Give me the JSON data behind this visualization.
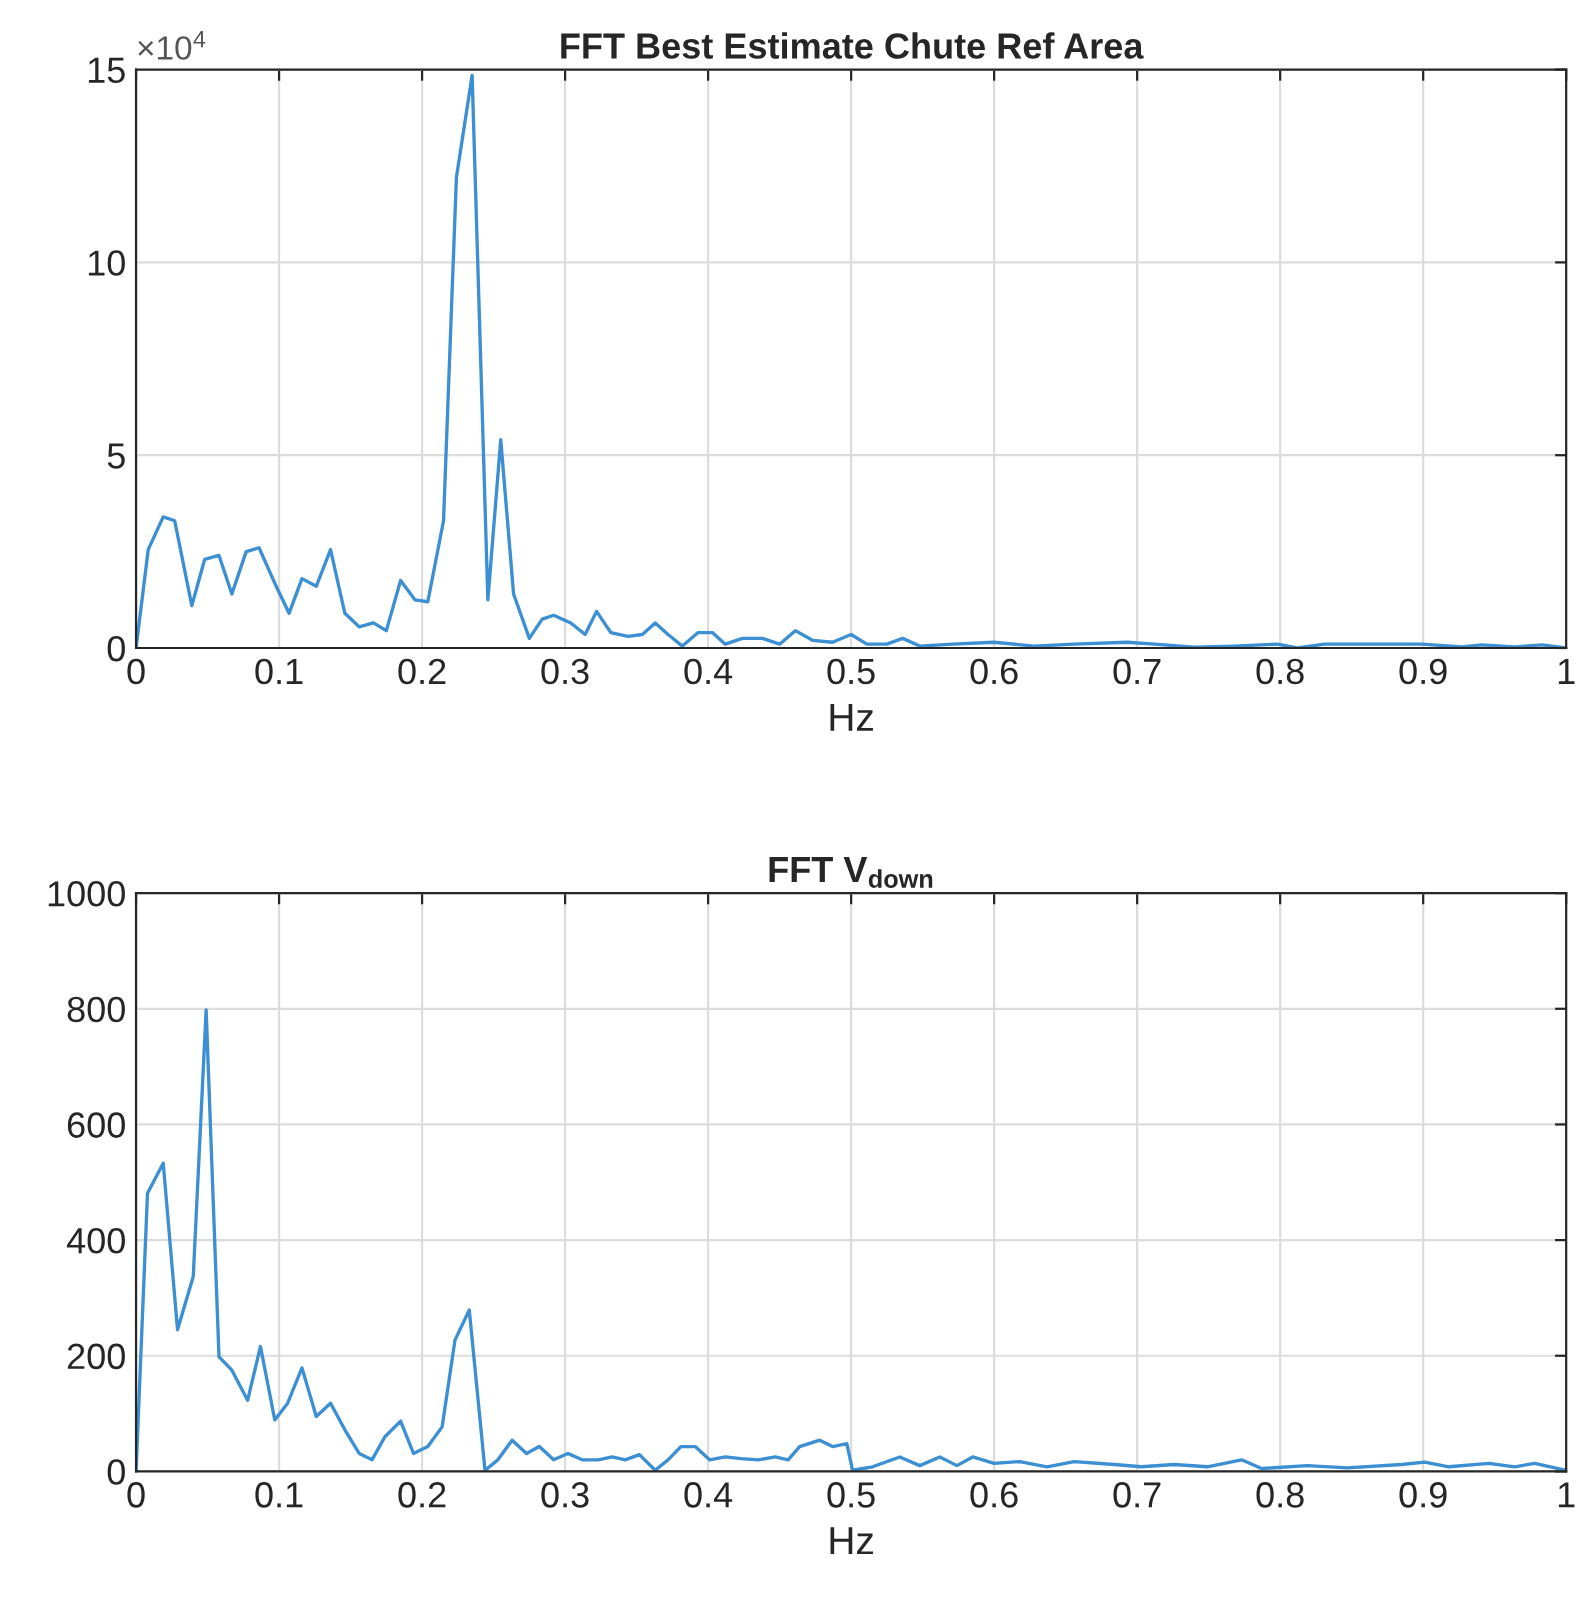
{
  "chart_data": [
    {
      "type": "line",
      "title": "FFT Best Estimate Chute Ref Area",
      "xlabel": "Hz",
      "annotations": [
        "×10$^{4}$"
      ],
      "xlim": [
        0,
        1
      ],
      "xticks": [
        0,
        0.1,
        0.2,
        0.3,
        0.4,
        0.5,
        0.6,
        0.7,
        0.8,
        0.9,
        1
      ],
      "ylim": [
        0,
        15
      ],
      "yticks": [
        0,
        5,
        10,
        15
      ],
      "grid": true,
      "series": [
        {
          "color": "#3c8fd2",
          "x": [
            0,
            0.0085,
            0.019,
            0.027,
            0.039,
            0.048,
            0.058,
            0.067,
            0.077,
            0.086,
            0.098,
            0.107,
            0.116,
            0.126,
            0.136,
            0.146,
            0.156,
            0.166,
            0.175,
            0.185,
            0.195,
            0.204,
            0.215,
            0.224,
            0.235,
            0.246,
            0.255,
            0.264,
            0.275,
            0.284,
            0.292,
            0.304,
            0.314,
            0.322,
            0.332,
            0.344,
            0.354,
            0.363,
            0.372,
            0.382,
            0.393,
            0.403,
            0.412,
            0.424,
            0.438,
            0.45,
            0.461,
            0.473,
            0.487,
            0.5,
            0.511,
            0.525,
            0.536,
            0.548,
            0.571,
            0.6,
            0.628,
            0.656,
            0.693,
            0.712,
            0.74,
            0.768,
            0.798,
            0.812,
            0.831,
            0.857,
            0.899,
            0.927,
            0.941,
            0.964,
            0.983,
            1.0
          ],
          "values": [
            0,
            2.55,
            3.4,
            3.3,
            1.1,
            2.3,
            2.4,
            1.4,
            2.5,
            2.6,
            1.6,
            0.9,
            1.8,
            1.6,
            2.55,
            0.9,
            0.55,
            0.65,
            0.45,
            1.75,
            1.25,
            1.2,
            3.3,
            12.2,
            14.85,
            1.25,
            5.4,
            1.4,
            0.25,
            0.75,
            0.85,
            0.65,
            0.35,
            0.95,
            0.4,
            0.3,
            0.35,
            0.65,
            0.35,
            0.05,
            0.4,
            0.4,
            0.1,
            0.25,
            0.25,
            0.1,
            0.45,
            0.2,
            0.15,
            0.35,
            0.1,
            0.1,
            0.25,
            0.05,
            0.1,
            0.15,
            0.05,
            0.1,
            0.15,
            0.1,
            0.02,
            0.05,
            0.1,
            0,
            0.1,
            0.1,
            0.1,
            0.03,
            0.08,
            0.03,
            0.08,
            0
          ]
        }
      ]
    },
    {
      "type": "line",
      "title": "FFT V$_{down}$",
      "xlabel": "Hz",
      "xlim": [
        0,
        1
      ],
      "xticks": [
        0,
        0.1,
        0.2,
        0.3,
        0.4,
        0.5,
        0.6,
        0.7,
        0.8,
        0.9,
        1
      ],
      "ylim": [
        0,
        1000
      ],
      "yticks": [
        0,
        200,
        400,
        600,
        800,
        1000
      ],
      "grid": true,
      "series": [
        {
          "color": "#3c8fd2",
          "x": [
            0,
            0.008,
            0.019,
            0.029,
            0.04,
            0.049,
            0.058,
            0.067,
            0.078,
            0.087,
            0.097,
            0.106,
            0.116,
            0.126,
            0.136,
            0.146,
            0.156,
            0.165,
            0.174,
            0.185,
            0.194,
            0.204,
            0.214,
            0.223,
            0.233,
            0.244,
            0.253,
            0.263,
            0.273,
            0.282,
            0.292,
            0.302,
            0.312,
            0.323,
            0.333,
            0.342,
            0.352,
            0.363,
            0.372,
            0.381,
            0.391,
            0.401,
            0.412,
            0.423,
            0.435,
            0.447,
            0.456,
            0.464,
            0.478,
            0.487,
            0.497,
            0.501,
            0.515,
            0.534,
            0.548,
            0.562,
            0.574,
            0.585,
            0.6,
            0.618,
            0.637,
            0.656,
            0.684,
            0.703,
            0.726,
            0.749,
            0.773,
            0.787,
            0.819,
            0.847,
            0.885,
            0.901,
            0.918,
            0.946,
            0.964,
            0.978,
            1.0
          ],
          "values": [
            0,
            481,
            533,
            245,
            337,
            798,
            198,
            175,
            123,
            216,
            89,
            118,
            179,
            95,
            118,
            72,
            31,
            20,
            60,
            87,
            31,
            43,
            77,
            227,
            279,
            2,
            20,
            54,
            31,
            43,
            20,
            31,
            20,
            20,
            25,
            20,
            29,
            2,
            20,
            43,
            43,
            20,
            25,
            22,
            20,
            25,
            20,
            43,
            54,
            43,
            48,
            2,
            8,
            25,
            10,
            25,
            10,
            25,
            14,
            17,
            8,
            17,
            12,
            8,
            12,
            8,
            20,
            5,
            10,
            6,
            12,
            16,
            8,
            14,
            8,
            14,
            2
          ]
        }
      ]
    }
  ]
}
